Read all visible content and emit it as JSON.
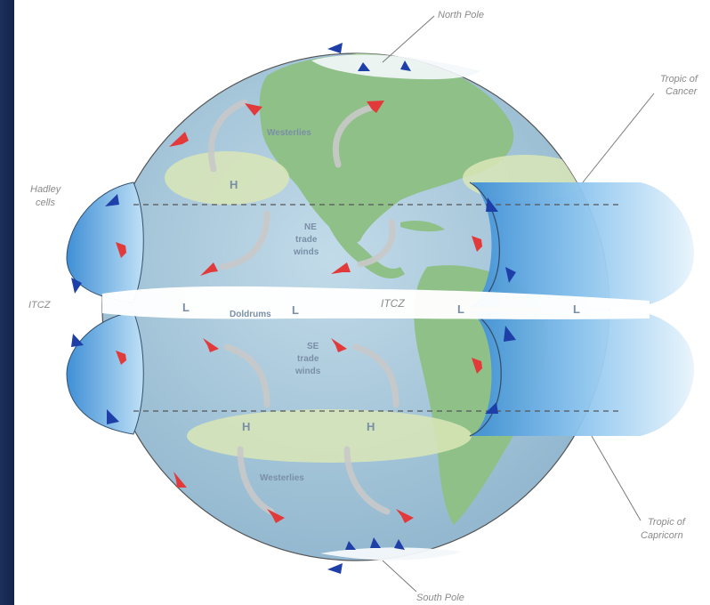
{
  "labels": {
    "north_pole": "North Pole",
    "south_pole": "South Pole",
    "tropic_cancer_1": "Tropic of",
    "tropic_cancer_2": "Cancer",
    "tropic_capricorn_1": "Tropic of",
    "tropic_capricorn_2": "Capricorn",
    "hadley_1": "Hadley",
    "hadley_2": "cells",
    "itcz_left": "ITCZ",
    "itcz_center": "ITCZ"
  },
  "map": {
    "westerlies_north": "Westerlies",
    "westerlies_south": "Westerlies",
    "ne_trade_1": "NE",
    "ne_trade_2": "trade",
    "ne_trade_3": "winds",
    "se_trade_1": "SE",
    "se_trade_2": "trade",
    "se_trade_3": "winds",
    "doldrums": "Doldrums",
    "high_nw": "H",
    "high_sw": "H",
    "high_sc": "H",
    "low_1": "L",
    "low_2": "L",
    "low_3": "L",
    "low_4": "L"
  },
  "colors": {
    "ocean": "#a9c9dd",
    "land": "#8fc088",
    "warm_arrow": "#e23a3a",
    "cold_arrow": "#1f3fa8",
    "cell_blue": "#5aa9e6"
  }
}
